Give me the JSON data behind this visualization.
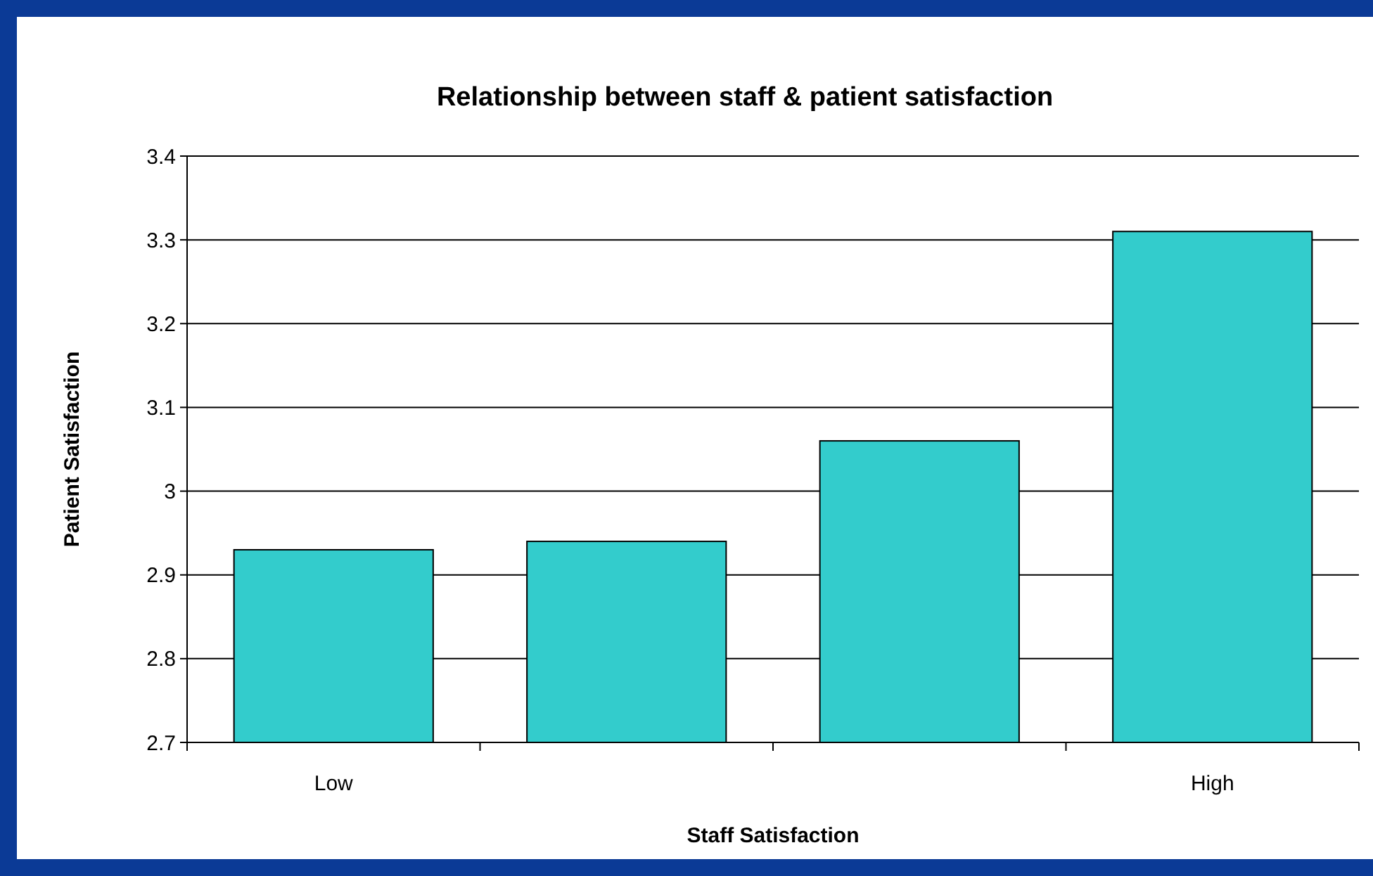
{
  "chart_data": {
    "type": "bar",
    "title": "Relationship between staff & patient satisfaction",
    "xlabel": "Staff Satisfaction",
    "ylabel": "Patient Satisfaction",
    "categories": [
      "Low",
      null,
      null,
      "High"
    ],
    "values": [
      2.93,
      2.94,
      3.06,
      3.31
    ],
    "color": "#33cccc",
    "ylim": [
      2.7,
      3.4
    ],
    "yticks": [
      {
        "value": 2.7,
        "label": "2.7"
      },
      {
        "value": 2.8,
        "label": "2.8"
      },
      {
        "value": 2.9,
        "label": "2.9"
      },
      {
        "value": 3,
        "label": "3"
      },
      {
        "value": 3.1,
        "label": "3.1"
      },
      {
        "value": 3.2,
        "label": "3.2"
      },
      {
        "value": 3.3,
        "label": "3.3"
      },
      {
        "value": 3.4,
        "label": "3.4"
      }
    ],
    "grid": "y"
  }
}
